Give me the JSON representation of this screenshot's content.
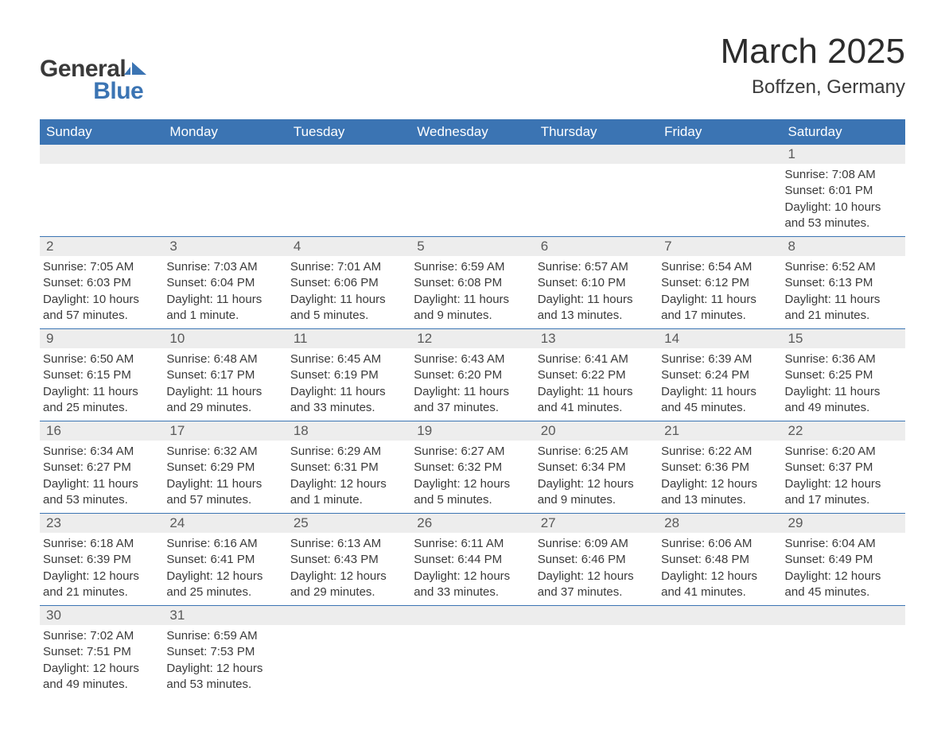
{
  "logo": {
    "text_general": "General",
    "text_blue": "Blue",
    "shape_color": "#3b74b3",
    "text_color_dark": "#3a3a3a"
  },
  "header": {
    "month_title": "March 2025",
    "location": "Boffzen, Germany",
    "title_fontsize": 44,
    "location_fontsize": 24
  },
  "colors": {
    "header_bg": "#3b74b3",
    "header_text": "#ffffff",
    "daynum_bg": "#ededed",
    "body_text": "#3a3a3a",
    "row_border": "#3b74b3",
    "page_bg": "#ffffff"
  },
  "weekdays": [
    "Sunday",
    "Monday",
    "Tuesday",
    "Wednesday",
    "Thursday",
    "Friday",
    "Saturday"
  ],
  "weeks": [
    [
      {
        "empty": true
      },
      {
        "empty": true
      },
      {
        "empty": true
      },
      {
        "empty": true
      },
      {
        "empty": true
      },
      {
        "empty": true
      },
      {
        "day": "1",
        "sunrise": "Sunrise: 7:08 AM",
        "sunset": "Sunset: 6:01 PM",
        "daylight": "Daylight: 10 hours and 53 minutes."
      }
    ],
    [
      {
        "day": "2",
        "sunrise": "Sunrise: 7:05 AM",
        "sunset": "Sunset: 6:03 PM",
        "daylight": "Daylight: 10 hours and 57 minutes."
      },
      {
        "day": "3",
        "sunrise": "Sunrise: 7:03 AM",
        "sunset": "Sunset: 6:04 PM",
        "daylight": "Daylight: 11 hours and 1 minute."
      },
      {
        "day": "4",
        "sunrise": "Sunrise: 7:01 AM",
        "sunset": "Sunset: 6:06 PM",
        "daylight": "Daylight: 11 hours and 5 minutes."
      },
      {
        "day": "5",
        "sunrise": "Sunrise: 6:59 AM",
        "sunset": "Sunset: 6:08 PM",
        "daylight": "Daylight: 11 hours and 9 minutes."
      },
      {
        "day": "6",
        "sunrise": "Sunrise: 6:57 AM",
        "sunset": "Sunset: 6:10 PM",
        "daylight": "Daylight: 11 hours and 13 minutes."
      },
      {
        "day": "7",
        "sunrise": "Sunrise: 6:54 AM",
        "sunset": "Sunset: 6:12 PM",
        "daylight": "Daylight: 11 hours and 17 minutes."
      },
      {
        "day": "8",
        "sunrise": "Sunrise: 6:52 AM",
        "sunset": "Sunset: 6:13 PM",
        "daylight": "Daylight: 11 hours and 21 minutes."
      }
    ],
    [
      {
        "day": "9",
        "sunrise": "Sunrise: 6:50 AM",
        "sunset": "Sunset: 6:15 PM",
        "daylight": "Daylight: 11 hours and 25 minutes."
      },
      {
        "day": "10",
        "sunrise": "Sunrise: 6:48 AM",
        "sunset": "Sunset: 6:17 PM",
        "daylight": "Daylight: 11 hours and 29 minutes."
      },
      {
        "day": "11",
        "sunrise": "Sunrise: 6:45 AM",
        "sunset": "Sunset: 6:19 PM",
        "daylight": "Daylight: 11 hours and 33 minutes."
      },
      {
        "day": "12",
        "sunrise": "Sunrise: 6:43 AM",
        "sunset": "Sunset: 6:20 PM",
        "daylight": "Daylight: 11 hours and 37 minutes."
      },
      {
        "day": "13",
        "sunrise": "Sunrise: 6:41 AM",
        "sunset": "Sunset: 6:22 PM",
        "daylight": "Daylight: 11 hours and 41 minutes."
      },
      {
        "day": "14",
        "sunrise": "Sunrise: 6:39 AM",
        "sunset": "Sunset: 6:24 PM",
        "daylight": "Daylight: 11 hours and 45 minutes."
      },
      {
        "day": "15",
        "sunrise": "Sunrise: 6:36 AM",
        "sunset": "Sunset: 6:25 PM",
        "daylight": "Daylight: 11 hours and 49 minutes."
      }
    ],
    [
      {
        "day": "16",
        "sunrise": "Sunrise: 6:34 AM",
        "sunset": "Sunset: 6:27 PM",
        "daylight": "Daylight: 11 hours and 53 minutes."
      },
      {
        "day": "17",
        "sunrise": "Sunrise: 6:32 AM",
        "sunset": "Sunset: 6:29 PM",
        "daylight": "Daylight: 11 hours and 57 minutes."
      },
      {
        "day": "18",
        "sunrise": "Sunrise: 6:29 AM",
        "sunset": "Sunset: 6:31 PM",
        "daylight": "Daylight: 12 hours and 1 minute."
      },
      {
        "day": "19",
        "sunrise": "Sunrise: 6:27 AM",
        "sunset": "Sunset: 6:32 PM",
        "daylight": "Daylight: 12 hours and 5 minutes."
      },
      {
        "day": "20",
        "sunrise": "Sunrise: 6:25 AM",
        "sunset": "Sunset: 6:34 PM",
        "daylight": "Daylight: 12 hours and 9 minutes."
      },
      {
        "day": "21",
        "sunrise": "Sunrise: 6:22 AM",
        "sunset": "Sunset: 6:36 PM",
        "daylight": "Daylight: 12 hours and 13 minutes."
      },
      {
        "day": "22",
        "sunrise": "Sunrise: 6:20 AM",
        "sunset": "Sunset: 6:37 PM",
        "daylight": "Daylight: 12 hours and 17 minutes."
      }
    ],
    [
      {
        "day": "23",
        "sunrise": "Sunrise: 6:18 AM",
        "sunset": "Sunset: 6:39 PM",
        "daylight": "Daylight: 12 hours and 21 minutes."
      },
      {
        "day": "24",
        "sunrise": "Sunrise: 6:16 AM",
        "sunset": "Sunset: 6:41 PM",
        "daylight": "Daylight: 12 hours and 25 minutes."
      },
      {
        "day": "25",
        "sunrise": "Sunrise: 6:13 AM",
        "sunset": "Sunset: 6:43 PM",
        "daylight": "Daylight: 12 hours and 29 minutes."
      },
      {
        "day": "26",
        "sunrise": "Sunrise: 6:11 AM",
        "sunset": "Sunset: 6:44 PM",
        "daylight": "Daylight: 12 hours and 33 minutes."
      },
      {
        "day": "27",
        "sunrise": "Sunrise: 6:09 AM",
        "sunset": "Sunset: 6:46 PM",
        "daylight": "Daylight: 12 hours and 37 minutes."
      },
      {
        "day": "28",
        "sunrise": "Sunrise: 6:06 AM",
        "sunset": "Sunset: 6:48 PM",
        "daylight": "Daylight: 12 hours and 41 minutes."
      },
      {
        "day": "29",
        "sunrise": "Sunrise: 6:04 AM",
        "sunset": "Sunset: 6:49 PM",
        "daylight": "Daylight: 12 hours and 45 minutes."
      }
    ],
    [
      {
        "day": "30",
        "sunrise": "Sunrise: 7:02 AM",
        "sunset": "Sunset: 7:51 PM",
        "daylight": "Daylight: 12 hours and 49 minutes."
      },
      {
        "day": "31",
        "sunrise": "Sunrise: 6:59 AM",
        "sunset": "Sunset: 7:53 PM",
        "daylight": "Daylight: 12 hours and 53 minutes."
      },
      {
        "empty": true
      },
      {
        "empty": true
      },
      {
        "empty": true
      },
      {
        "empty": true
      },
      {
        "empty": true
      }
    ]
  ]
}
